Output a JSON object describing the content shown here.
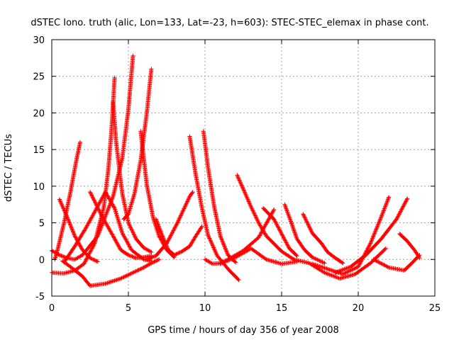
{
  "chart_data": {
    "type": "scatter",
    "title": "dSTEC Iono. truth (alic, Lon=133, Lat=-23, h=603): STEC-STEC_elemax in phase cont.",
    "xlabel": "GPS time / hours of day 356 of year 2008",
    "ylabel": "dSTEC  / TECUs",
    "xlim": [
      0,
      25
    ],
    "ylim": [
      -5,
      30
    ],
    "x_ticks": [
      "0",
      "5",
      "10",
      "15",
      "20",
      "25"
    ],
    "y_ticks": [
      "-5",
      "0",
      "5",
      "10",
      "15",
      "20",
      "25",
      "30"
    ],
    "grid": true,
    "marker": "+",
    "series_color": "#ff0000",
    "series": [
      {
        "x": [
          0.0,
          0.5,
          1.0,
          1.5,
          2.0,
          3.0,
          4.0,
          4.6,
          5.0,
          5.3
        ],
        "y": [
          1.2,
          0.6,
          0.2,
          0.0,
          0.6,
          3.2,
          8.6,
          13.8,
          20.5,
          27.8
        ]
      },
      {
        "x": [
          0.0,
          0.8,
          1.5,
          2.1,
          2.8,
          3.4,
          3.7,
          3.9,
          4.1
        ],
        "y": [
          -1.8,
          -1.9,
          -1.5,
          -0.6,
          2.2,
          7.2,
          12.5,
          17.8,
          24.8
        ]
      },
      {
        "x": [
          0.7,
          1.4,
          2.0,
          2.5,
          3.5,
          4.5,
          5.5,
          6.0,
          6.5,
          7.0
        ],
        "y": [
          -0.2,
          -1.3,
          -2.3,
          -3.6,
          -3.3,
          -2.6,
          -1.6,
          -1.1,
          -0.5,
          0.0
        ]
      },
      {
        "x": [
          0.2,
          0.4,
          0.8,
          1.2,
          1.6,
          1.85
        ],
        "y": [
          0.0,
          1.5,
          5.0,
          9.0,
          13.5,
          16.0
        ]
      },
      {
        "x": [
          0.5,
          1.0,
          1.5,
          2.0,
          2.5,
          3.0
        ],
        "y": [
          8.2,
          5.8,
          3.2,
          1.3,
          0.2,
          -0.3
        ]
      },
      {
        "x": [
          0.8,
          1.5,
          2.2,
          2.8,
          3.5,
          4.1,
          4.6,
          5.2,
          6.0,
          6.5
        ],
        "y": [
          -0.4,
          1.8,
          4.2,
          6.5,
          9.2,
          7.0,
          3.6,
          1.3,
          0.0,
          -0.2
        ]
      },
      {
        "x": [
          2.5,
          3.2,
          4.0,
          4.5,
          5.0,
          5.5,
          6.0,
          6.5
        ],
        "y": [
          9.2,
          6.2,
          3.2,
          1.3,
          0.6,
          0.2,
          0.3,
          0.5
        ]
      },
      {
        "x": [
          4.0,
          4.2,
          4.6,
          5.0,
          5.5,
          6.0,
          6.5
        ],
        "y": [
          21.5,
          16.0,
          9.0,
          5.0,
          2.8,
          1.6,
          1.0
        ]
      },
      {
        "x": [
          4.7,
          5.0,
          5.4,
          5.8,
          6.2,
          6.5
        ],
        "y": [
          5.5,
          6.2,
          9.0,
          13.5,
          20.0,
          26.0
        ]
      },
      {
        "x": [
          5.8,
          6.2,
          6.6,
          7.0,
          7.5,
          8.0
        ],
        "y": [
          17.5,
          10.2,
          5.8,
          3.2,
          1.3,
          0.3
        ]
      },
      {
        "x": [
          6.2,
          6.8,
          7.5,
          8.2,
          9.0,
          9.2
        ],
        "y": [
          0.0,
          0.5,
          2.2,
          5.0,
          8.6,
          9.2
        ]
      },
      {
        "x": [
          6.8,
          7.2,
          7.6,
          8.0,
          8.5,
          9.0,
          9.4,
          9.8
        ],
        "y": [
          5.5,
          3.3,
          1.3,
          0.6,
          1.1,
          1.8,
          3.2,
          4.5
        ]
      },
      {
        "x": [
          9.0,
          9.4,
          9.8,
          10.2,
          10.8,
          11.5,
          12.2
        ],
        "y": [
          16.8,
          11.5,
          7.0,
          3.3,
          0.5,
          -1.3,
          -2.8
        ]
      },
      {
        "x": [
          9.9,
          10.2,
          10.6,
          11.0,
          11.5,
          12.0
        ],
        "y": [
          17.5,
          12.5,
          7.2,
          3.2,
          0.6,
          -0.4
        ]
      },
      {
        "x": [
          10.0,
          10.5,
          11.0,
          11.5,
          12.5,
          13.5,
          14.5
        ],
        "y": [
          0.0,
          -0.6,
          -0.5,
          0.0,
          1.2,
          3.0,
          6.8
        ]
      },
      {
        "x": [
          12.1,
          12.5,
          13.0,
          13.5,
          14.0,
          15.0,
          15.8
        ],
        "y": [
          11.5,
          9.6,
          7.2,
          5.0,
          3.2,
          1.1,
          0.0
        ]
      },
      {
        "x": [
          11.0,
          12.0,
          13.0,
          14.0,
          15.0,
          16.0
        ],
        "y": [
          -0.6,
          0.3,
          1.5,
          0.0,
          -0.6,
          -0.3
        ]
      },
      {
        "x": [
          13.8,
          14.5,
          15.0,
          15.5,
          16.0
        ],
        "y": [
          7.0,
          5.5,
          3.5,
          1.5,
          0.5
        ]
      },
      {
        "x": [
          15.2,
          15.6,
          16.0,
          16.5,
          17.0,
          17.8
        ],
        "y": [
          7.5,
          5.2,
          2.8,
          1.3,
          0.3,
          -0.5
        ]
      },
      {
        "x": [
          16.4,
          17.0,
          17.6,
          18.0,
          18.5,
          19.0
        ],
        "y": [
          6.2,
          3.6,
          2.2,
          1.0,
          0.2,
          -0.5
        ]
      },
      {
        "x": [
          15.8,
          16.8,
          17.8,
          18.8,
          19.8,
          20.8,
          21.8
        ],
        "y": [
          0.0,
          -0.5,
          -1.8,
          -2.6,
          -2.0,
          -0.5,
          1.5
        ]
      },
      {
        "x": [
          17.0,
          18.0,
          19.0,
          20.0,
          20.8,
          21.5,
          22.0
        ],
        "y": [
          -0.6,
          -1.3,
          -2.0,
          -1.0,
          2.2,
          5.8,
          8.5
        ]
      },
      {
        "x": [
          18.5,
          19.5,
          20.5,
          21.5,
          22.5,
          23.2
        ],
        "y": [
          -1.8,
          -1.0,
          0.6,
          2.8,
          5.5,
          8.3
        ]
      },
      {
        "x": [
          21.0,
          22.0,
          23.0,
          23.5,
          24.0
        ],
        "y": [
          0.0,
          -1.1,
          -1.5,
          -0.5,
          0.6
        ]
      },
      {
        "x": [
          22.7,
          23.2,
          23.7,
          24.0
        ],
        "y": [
          3.5,
          2.5,
          1.2,
          0.2
        ]
      }
    ]
  }
}
